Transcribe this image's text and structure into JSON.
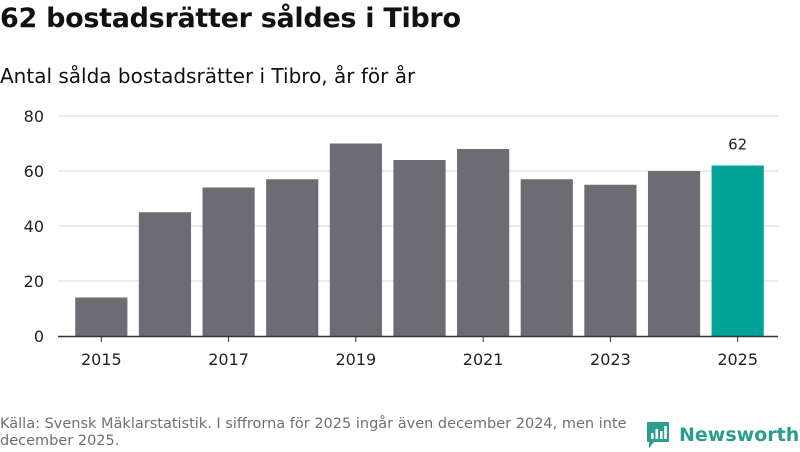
{
  "title": "62 bostadsrätter såldes i Tibro",
  "subtitle": "Antal sålda bostadsrätter i Tibro, år för år",
  "footer": "Källa: Svensk Mäklarstatistik. I siffrorna för 2025 ingår även december 2024, men inte december 2025.",
  "brand": {
    "name": "Newsworthy",
    "icon": "bar-chart-logo-icon"
  },
  "colors": {
    "bar": "#6d6c72",
    "highlight": "#00a497",
    "grid": "#d9d9d9",
    "axis": "#333333",
    "text": "#222222",
    "brand": "#2a9d8f"
  },
  "chart_data": {
    "type": "bar",
    "categories": [
      "2015",
      "2016",
      "2017",
      "2018",
      "2019",
      "2020",
      "2021",
      "2022",
      "2023",
      "2024",
      "2025"
    ],
    "values": [
      14,
      45,
      54,
      57,
      70,
      64,
      68,
      57,
      55,
      60,
      62
    ],
    "x_tick_labels": [
      "2015",
      "2017",
      "2019",
      "2021",
      "2023",
      "2025"
    ],
    "y_ticks": [
      0,
      20,
      40,
      60,
      80
    ],
    "ylim": [
      0,
      80
    ],
    "highlight_category": "2025",
    "data_labels": [
      {
        "category": "2025",
        "text": "62"
      }
    ],
    "grid": true,
    "xlabel": "",
    "ylabel": ""
  }
}
